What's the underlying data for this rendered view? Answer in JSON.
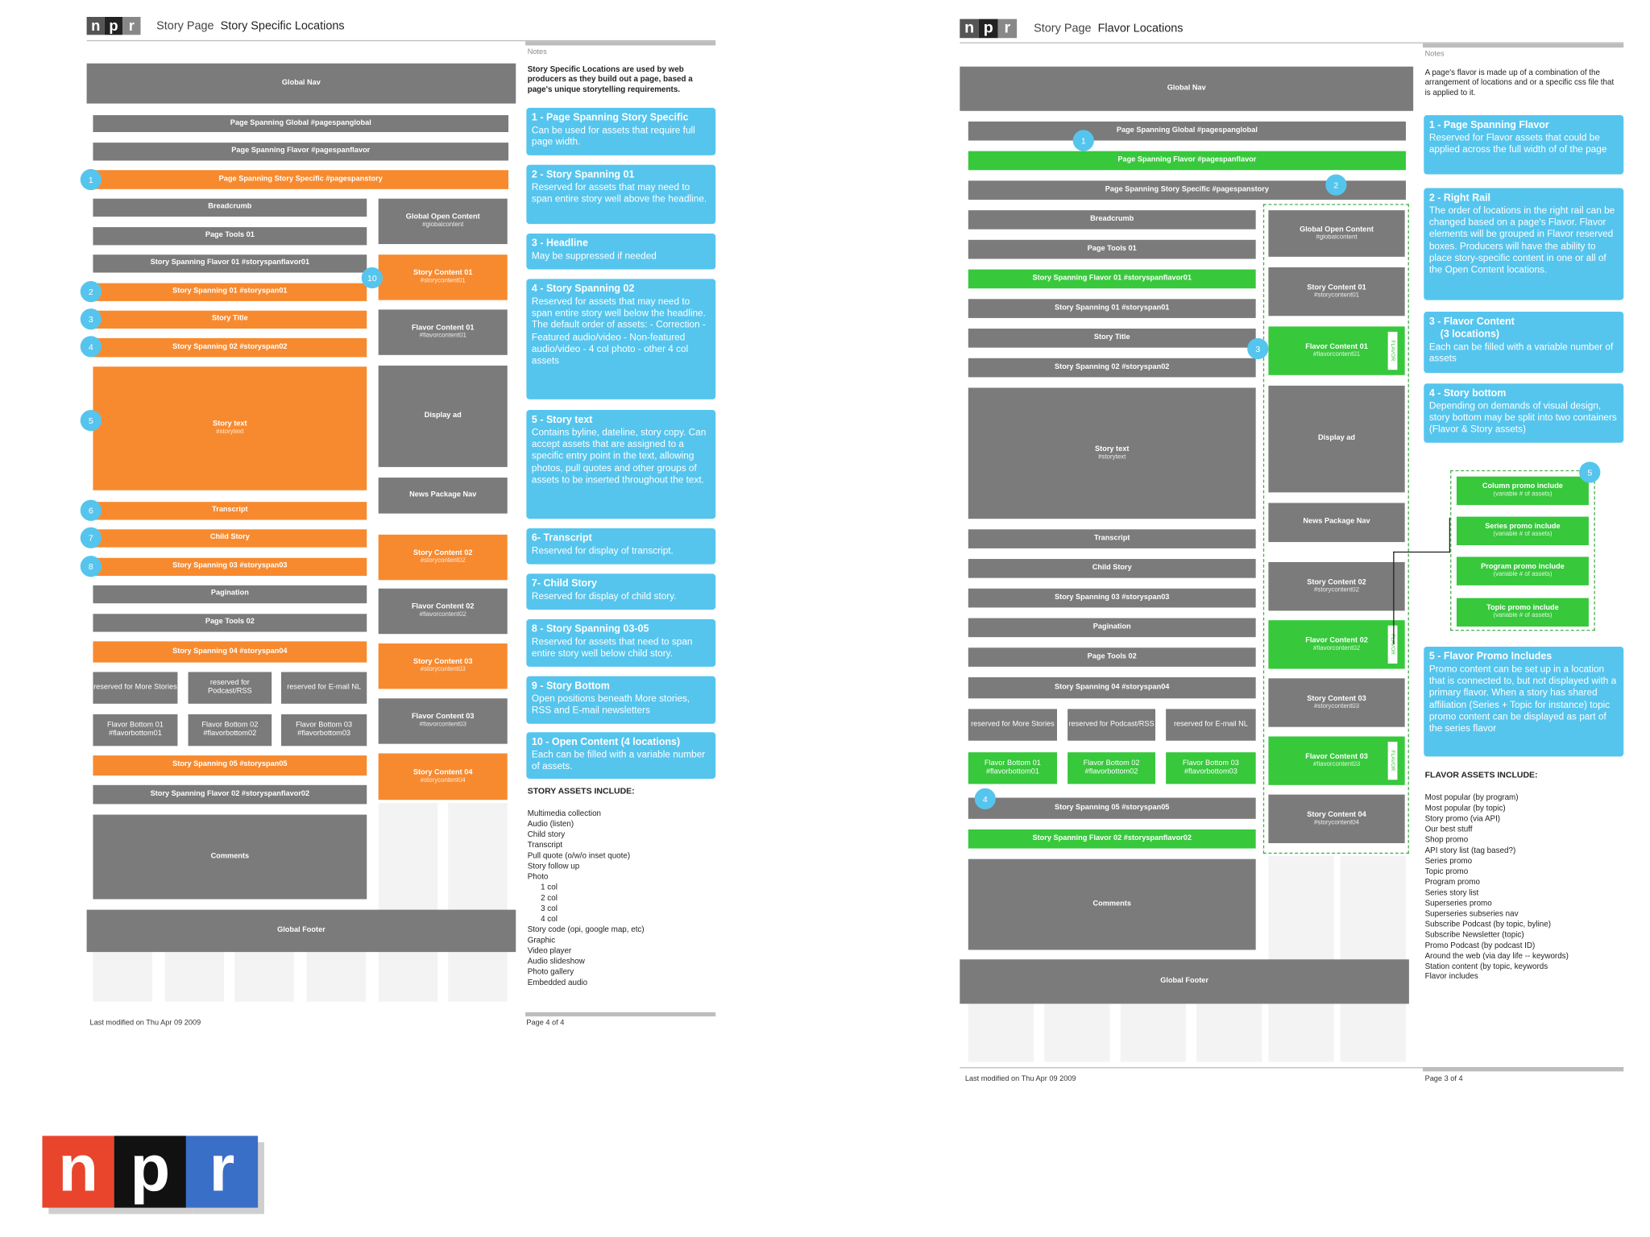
{
  "logo": {
    "letters": [
      "n",
      "p",
      "r"
    ],
    "colors": [
      "#e8452c",
      "#111111",
      "#3a6fc8"
    ]
  },
  "left": {
    "header_section": "Story Page",
    "header_title": "Story Specific Locations",
    "notes_label": "Notes",
    "intro": "Story Specific Locations are used by web producers as they build out a page, based a page's unique storytelling requirements.",
    "boxes": {
      "global_nav": "Global Nav",
      "ps_global": "Page Spanning Global #pagespanglobal",
      "ps_flavor": "Page Spanning Flavor #pagespanflavor",
      "ps_story": "Page Spanning Story Specific #pagespanstory",
      "breadcrumb": "Breadcrumb",
      "page_tools_01": "Page Tools 01",
      "ss_flavor_01": "Story Spanning Flavor 01 #storyspanflavor01",
      "ss_01": "Story Spanning 01 #storyspan01",
      "story_title": "Story Title",
      "ss_02": "Story Spanning 02 #storyspan02",
      "story_text": "Story text",
      "story_text_id": "#storytext",
      "transcript": "Transcript",
      "child_story": "Child Story",
      "ss_03": "Story Spanning 03 #storyspan03",
      "pagination": "Pagination",
      "page_tools_02": "Page Tools 02",
      "ss_04": "Story Spanning 04 #storyspan04",
      "rsv_more": "reserved for More Stories",
      "rsv_podcast": "reserved for Podcast/RSS",
      "rsv_email": "reserved for E-mail NL",
      "fb_01": "Flavor Bottom 01 #flavorbottom01",
      "fb_02": "Flavor Bottom 02 #flavorbottom02",
      "fb_03": "Flavor Bottom 03 #flavorbottom03",
      "ss_05": "Story Spanning 05 #storyspan05",
      "ss_flavor_02": "Story Spanning Flavor 02 #storyspanflavor02",
      "comments": "Comments",
      "global_footer": "Global Footer",
      "global_open": "Global Open Content",
      "global_open_id": "#globalcontent",
      "sc_01": "Story Content 01",
      "sc_01_id": "#storycontent01",
      "fc_01": "Flavor Content 01",
      "fc_01_id": "#flavorcontent01",
      "display_ad": "Display ad",
      "news_pkg": "News Package Nav",
      "sc_02": "Story Content 02",
      "sc_02_id": "#storycontent02",
      "fc_02": "Flavor Content 02",
      "fc_02_id": "#flavorcontent02",
      "sc_03": "Story Content 03",
      "sc_03_id": "#storycontent03",
      "fc_03": "Flavor Content 03",
      "fc_03_id": "#flavorcontent03",
      "sc_04": "Story Content 04",
      "sc_04_id": "#storycontent04"
    },
    "badges": [
      "1",
      "2",
      "3",
      "4",
      "5",
      "6",
      "7",
      "8",
      "10"
    ],
    "notes": [
      {
        "t": "1 - Page Spanning Story Specific",
        "b": "Can be used for assets that require full page width."
      },
      {
        "t": "2 - Story Spanning 01",
        "b": "Reserved for assets that may need to span entire story well above the headline."
      },
      {
        "t": "3 - Headline",
        "b": "May be suppressed if needed"
      },
      {
        "t": "4 - Story Spanning 02",
        "b": "Reserved for assets that may need to span entire story well below the headline.  The default order of assets: - Correction - Featured audio/video - Non-featured audio/video - 4 col photo - other 4 col assets"
      },
      {
        "t": "5 - Story text",
        "b": "Contains byline, dateline, story copy. Can accept assets that are assigned to a specific entry point in the text, allowing photos, pull quotes and other groups of assets to be inserted throughout the text."
      },
      {
        "t": "6- Transcript",
        "b": "Reserved for display of transcript."
      },
      {
        "t": "7- Child Story",
        "b": "Reserved for display of child story."
      },
      {
        "t": "8 - Story Spanning 03-05",
        "b": "Reserved for assets that need to span entire story well below child story."
      },
      {
        "t": "9 - Story Bottom",
        "b": "Open positions beneath More stories, RSS and E-mail newsletters"
      },
      {
        "t": "10 - Open Content  (4 locations)",
        "b": "Each can be filled with a variable number of assets."
      }
    ],
    "assets_heading": "STORY  ASSETS INCLUDE:",
    "assets": [
      "Multimedia collection",
      "Audio (listen)",
      "Child story",
      "Transcript",
      "Pull quote (o/w/o inset quote)",
      "Story follow up",
      "Photo",
      "      1 col",
      "      2 col",
      "      3 col",
      "      4 col",
      "Story code (opi, google map, etc)",
      "Graphic",
      "Video player",
      "Audio slideshow",
      "Photo gallery",
      "Embedded audio"
    ],
    "footer_left": "Last modified on Thu Apr 09 2009",
    "footer_right": "Page 4 of 4"
  },
  "right": {
    "header_section": "Story Page",
    "header_title": "Flavor Locations",
    "notes_label": "Notes",
    "intro": "A page's flavor is made up of a combination of the arrangement of locations and or a specific css file that is applied to it.",
    "boxes": {
      "global_nav": "Global Nav",
      "ps_global": "Page Spanning Global #pagespanglobal",
      "ps_flavor": "Page Spanning Flavor #pagespanflavor",
      "ps_story": "Page Spanning Story Specific #pagespanstory",
      "breadcrumb": "Breadcrumb",
      "page_tools_01": "Page Tools 01",
      "ss_flavor_01": "Story Spanning Flavor 01 #storyspanflavor01",
      "ss_01": "Story Spanning 01 #storyspan01",
      "story_title": "Story Title",
      "ss_02": "Story Spanning 02 #storyspan02",
      "story_text": "Story text",
      "story_text_id": "#storytext",
      "transcript": "Transcript",
      "child_story": "Child Story",
      "ss_03": "Story Spanning 03 #storyspan03",
      "pagination": "Pagination",
      "page_tools_02": "Page Tools 02",
      "ss_04": "Story Spanning 04 #storyspan04",
      "rsv_more": "reserved for More Stories",
      "rsv_podcast": "reserved for Podcast/RSS",
      "rsv_email": "reserved for E-mail NL",
      "fb_01": "Flavor Bottom 01 #flavorbottom01",
      "fb_02": "Flavor Bottom 02 #flavorbottom02",
      "fb_03": "Flavor Bottom 03 #flavorbottom03",
      "ss_05": "Story Spanning 05 #storyspan05",
      "ss_flavor_02": "Story Spanning Flavor 02 #storyspanflavor02",
      "comments": "Comments",
      "global_footer": "Global Footer",
      "global_open": "Global Open Content",
      "global_open_id": "#globalcontent",
      "sc_01": "Story Content 01",
      "sc_01_id": "#storycontent01",
      "fc_01": "Flavor Content 01",
      "fc_01_id": "#flavorcontent01",
      "display_ad": "Display ad",
      "news_pkg": "News Package Nav",
      "sc_02": "Story Content 02",
      "sc_02_id": "#storycontent02",
      "fc_02": "Flavor Content 02",
      "fc_02_id": "#flavorcontent02",
      "sc_03": "Story Content 03",
      "sc_03_id": "#storycontent03",
      "fc_03": "Flavor Content 03",
      "fc_03_id": "#flavorcontent03",
      "sc_04": "Story Content 04",
      "sc_04_id": "#storycontent04",
      "promo_col": "Column promo include",
      "promo_series": "Series promo include",
      "promo_program": "Program promo include",
      "promo_topic": "Topic promo include",
      "promo_sub": "(variable # of assets)",
      "vtag": "FLAVOR"
    },
    "badges": [
      "1",
      "2",
      "3",
      "4",
      "5"
    ],
    "notes": [
      {
        "t": "1 - Page Spanning Flavor",
        "b": "Reserved for Flavor assets that could be applied across the full width of of the page"
      },
      {
        "t": "2 - Right Rail",
        "b": "The order of locations in the right rail can be changed based on a page's Flavor. Flavor elements will be grouped in Flavor reserved boxes. Producers will have the ability to place story-specific content in one or all of the Open Content locations."
      },
      {
        "t": "3 - Flavor Content\n    (3 locations)",
        "b": "Each can be filled with a variable number of assets"
      },
      {
        "t": "4 - Story bottom",
        "b": "Depending on demands of visual design, story bottom may be split into two containers (Flavor & Story assets)"
      },
      {
        "t": "5 - Flavor Promo Includes",
        "b": "Promo content can be set up in a location that is connected to, but not displayed with a primary flavor. When a story has shared affiliation (Series + Topic for instance) topic promo content can be displayed as part of the series flavor"
      }
    ],
    "assets_heading": "FLAVOR  ASSETS INCLUDE:",
    "assets": [
      "Most popular (by program)",
      "Most popular (by topic)",
      "Story promo (via API)",
      "Our best stuff",
      "Shop promo",
      "API story list (tag based?)",
      "Series promo",
      "Topic promo",
      "Program promo",
      "Series story list",
      "Superseries promo",
      "Superseries subseries nav",
      "Subscribe Podcast (by topic, byline)",
      "Subscribe Newsletter (topic)",
      "Promo Podcast (by podcast ID)",
      "Around the web (via day life -- keywords)",
      "Station content (by topic, keywords",
      "Flavor includes"
    ],
    "footer_left": "Last modified on Thu Apr 09 2009",
    "footer_right": "Page 3 of 4"
  }
}
